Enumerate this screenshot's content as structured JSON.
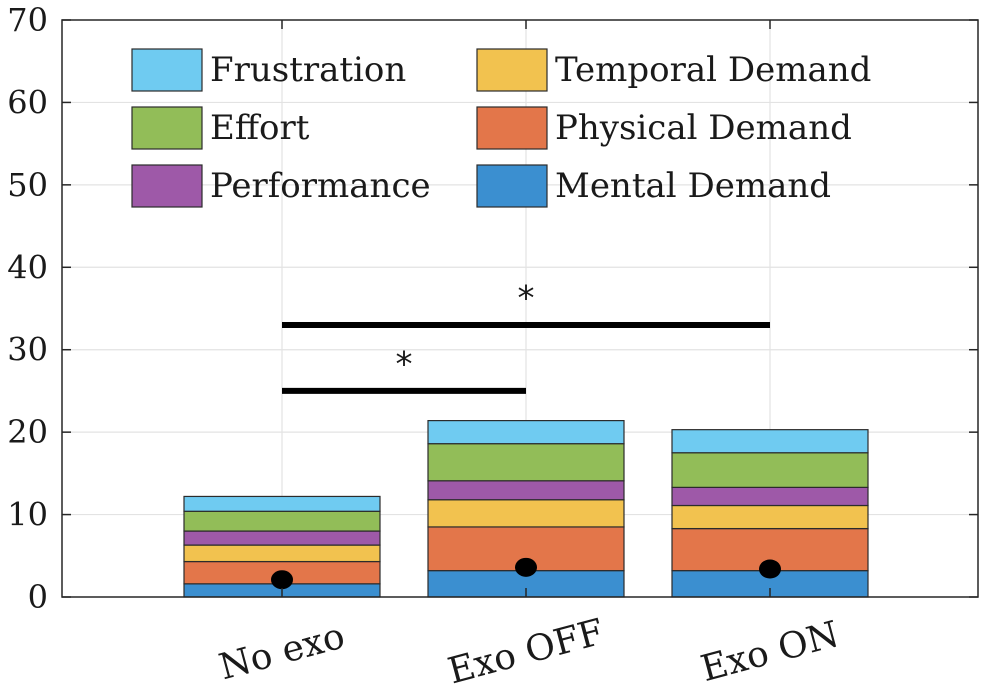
{
  "chart_data": {
    "type": "bar",
    "stacked": true,
    "categories": [
      "No exo",
      "Exo OFF",
      "Exo ON"
    ],
    "series": [
      {
        "name": "Mental Demand",
        "color": "#3b8fd0",
        "values": [
          1.6,
          3.2,
          3.2
        ]
      },
      {
        "name": "Physical Demand",
        "color": "#e3764a",
        "values": [
          2.7,
          5.3,
          5.1
        ]
      },
      {
        "name": "Temporal Demand",
        "color": "#f2c24f",
        "values": [
          2.0,
          3.3,
          2.8
        ]
      },
      {
        "name": "Performance",
        "color": "#9e59a8",
        "values": [
          1.7,
          2.3,
          2.2
        ]
      },
      {
        "name": "Effort",
        "color": "#92bd58",
        "values": [
          2.4,
          4.5,
          4.2
        ]
      },
      {
        "name": "Frustration",
        "color": "#6fcbf1",
        "values": [
          1.8,
          2.8,
          2.8
        ]
      }
    ],
    "markers": [
      2.1,
      3.6,
      3.4
    ],
    "significance": [
      {
        "from": "No exo",
        "to": "Exo OFF",
        "y": 25,
        "label": "*"
      },
      {
        "from": "No exo",
        "to": "Exo ON",
        "y": 33,
        "label": "*"
      }
    ],
    "yticks": [
      0,
      10,
      20,
      30,
      40,
      50,
      60,
      70
    ],
    "ylim": [
      0,
      70
    ],
    "grid": true,
    "legend_position": "top",
    "legend_order": [
      "Frustration",
      "Temporal Demand",
      "Effort",
      "Physical Demand",
      "Performance",
      "Mental Demand"
    ],
    "title": "",
    "xlabel": "",
    "ylabel": ""
  }
}
